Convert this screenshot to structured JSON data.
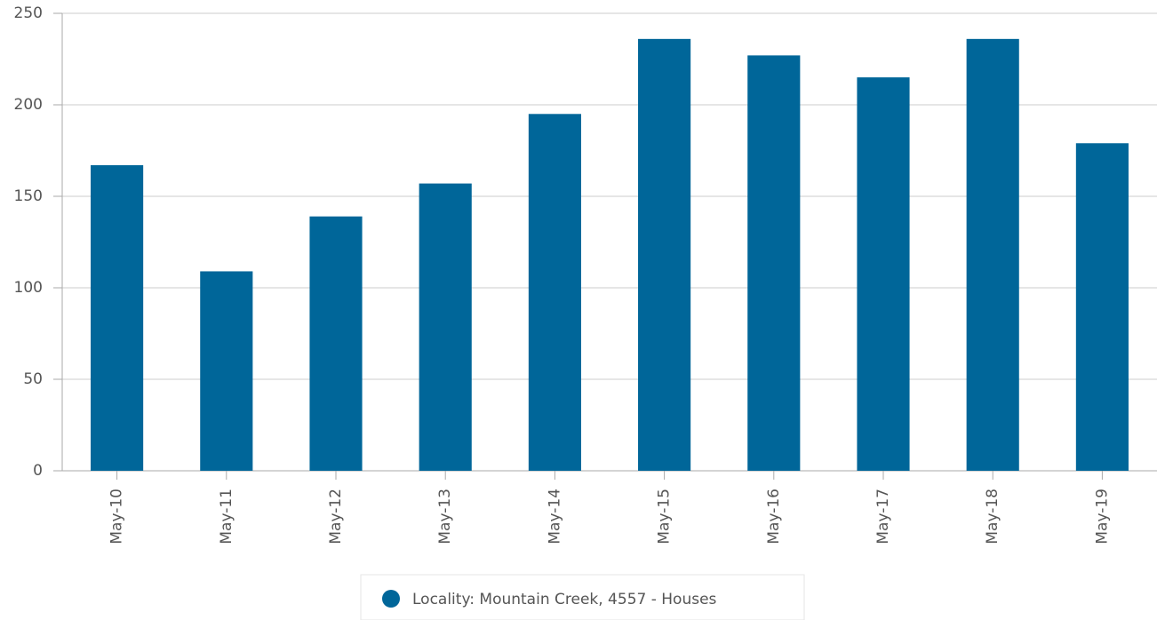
{
  "chart_data": {
    "type": "bar",
    "categories": [
      "May-10",
      "May-11",
      "May-12",
      "May-13",
      "May-14",
      "May-15",
      "May-16",
      "May-17",
      "May-18",
      "May-19"
    ],
    "series": [
      {
        "name": "Locality: Mountain Creek, 4557 - Houses",
        "color": "#006699",
        "values": [
          167,
          109,
          139,
          157,
          195,
          236,
          227,
          215,
          236,
          179
        ]
      }
    ],
    "ylim": [
      0,
      250
    ],
    "yticks": [
      0,
      50,
      100,
      150,
      200,
      250
    ],
    "grid": true,
    "legend": "bottom"
  }
}
